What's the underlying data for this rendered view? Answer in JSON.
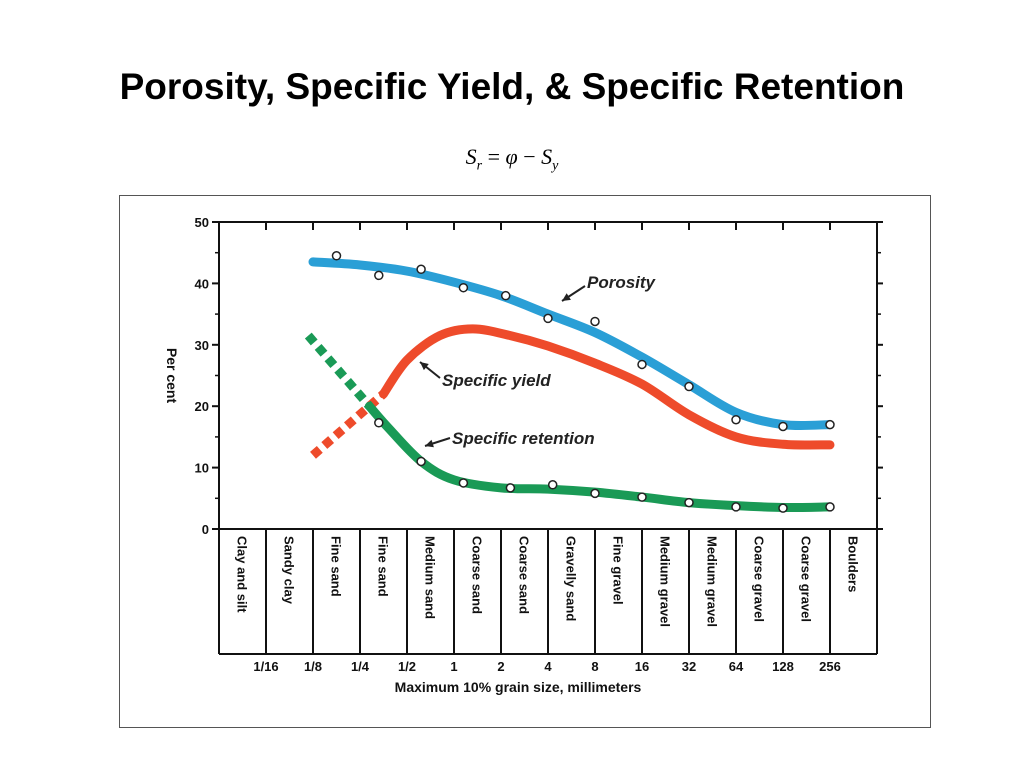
{
  "slide": {
    "title": "Porosity, Specific Yield, & Specific Retention",
    "equation": {
      "lhs": "S",
      "lhs_sub": "r",
      "op": " = ",
      "phi": "φ",
      "minus": " − ",
      "rhs": "S",
      "rhs_sub": "y"
    }
  },
  "colors": {
    "porosity": "#2a9fd6",
    "specific_yield": "#ee4b2b",
    "specific_retention": "#1a9a56",
    "axis": "#111111",
    "marker": "#ffffff"
  },
  "chart_data": {
    "type": "line",
    "title": "",
    "ylabel": "Per cent",
    "xlabel": "Maximum 10% grain size, millimeters",
    "ylim": [
      0,
      50
    ],
    "y_ticks": [
      0,
      10,
      20,
      30,
      40,
      50
    ],
    "categories": [
      "Clay and silt",
      "Sandy clay",
      "Fine sand",
      "Fine sand",
      "Medium sand",
      "Coarse sand",
      "Coarse sand",
      "Gravelly sand",
      "Fine gravel",
      "Medium gravel",
      "Medium gravel",
      "Coarse gravel",
      "Coarse gravel",
      "Boulders"
    ],
    "size_ticks": [
      "1/16",
      "1/8",
      "1/4",
      "1/2",
      "1",
      "2",
      "4",
      "8",
      "16",
      "32",
      "64",
      "128",
      "256"
    ],
    "series": [
      {
        "name": "Porosity",
        "key": "porosity",
        "curve": [
          [
            2,
            43.5
          ],
          [
            3,
            43
          ],
          [
            4,
            42
          ],
          [
            5,
            40.2
          ],
          [
            6,
            38
          ],
          [
            7,
            35
          ],
          [
            8,
            32
          ],
          [
            9,
            28
          ],
          [
            10,
            23.5
          ],
          [
            11,
            19
          ],
          [
            12,
            17
          ],
          [
            13,
            17
          ]
        ],
        "points": [
          [
            2.5,
            44.5
          ],
          [
            3.4,
            41.3
          ],
          [
            4.3,
            42.3
          ],
          [
            5.2,
            39.3
          ],
          [
            6.1,
            38
          ],
          [
            7.0,
            34.3
          ],
          [
            8.0,
            33.8
          ],
          [
            9.0,
            26.8
          ],
          [
            10.0,
            23.2
          ],
          [
            11.0,
            17.8
          ],
          [
            12.0,
            16.7
          ],
          [
            13.0,
            17
          ]
        ]
      },
      {
        "name": "Specific yield",
        "key": "specific_yield",
        "curve": [
          [
            3.5,
            22
          ],
          [
            4,
            27.5
          ],
          [
            4.7,
            31.5
          ],
          [
            5.4,
            32.6
          ],
          [
            6.2,
            31.5
          ],
          [
            7,
            29.8
          ],
          [
            8,
            27
          ],
          [
            9,
            23.6
          ],
          [
            10,
            18.6
          ],
          [
            11,
            15
          ],
          [
            12,
            13.8
          ],
          [
            13,
            13.7
          ]
        ],
        "dashed": [
          [
            2,
            12
          ],
          [
            3.5,
            22
          ]
        ]
      },
      {
        "name": "Specific retention",
        "key": "specific_retention",
        "curve": [
          [
            3.2,
            20
          ],
          [
            3.6,
            16.5
          ],
          [
            4.3,
            11
          ],
          [
            5,
            8
          ],
          [
            6,
            6.7
          ],
          [
            7,
            6.5
          ],
          [
            8,
            6
          ],
          [
            9,
            5.2
          ],
          [
            10,
            4.3
          ],
          [
            11,
            3.8
          ],
          [
            12,
            3.5
          ],
          [
            13,
            3.6
          ]
        ],
        "dashed": [
          [
            1.9,
            31.5
          ],
          [
            3.2,
            20
          ]
        ],
        "points": [
          [
            3.4,
            17.3
          ],
          [
            4.3,
            11
          ],
          [
            5.2,
            7.5
          ],
          [
            6.2,
            6.7
          ],
          [
            7.1,
            7.2
          ],
          [
            8.0,
            5.8
          ],
          [
            9.0,
            5.2
          ],
          [
            10.0,
            4.3
          ],
          [
            11.0,
            3.6
          ],
          [
            12.0,
            3.4
          ],
          [
            13.0,
            3.6
          ]
        ]
      }
    ],
    "annotations": [
      {
        "text": "Porosity",
        "series": "porosity"
      },
      {
        "text": "Specific yield",
        "series": "specific_yield"
      },
      {
        "text": "Specific retention",
        "series": "specific_retention"
      }
    ],
    "grid": false,
    "legend": "none"
  }
}
